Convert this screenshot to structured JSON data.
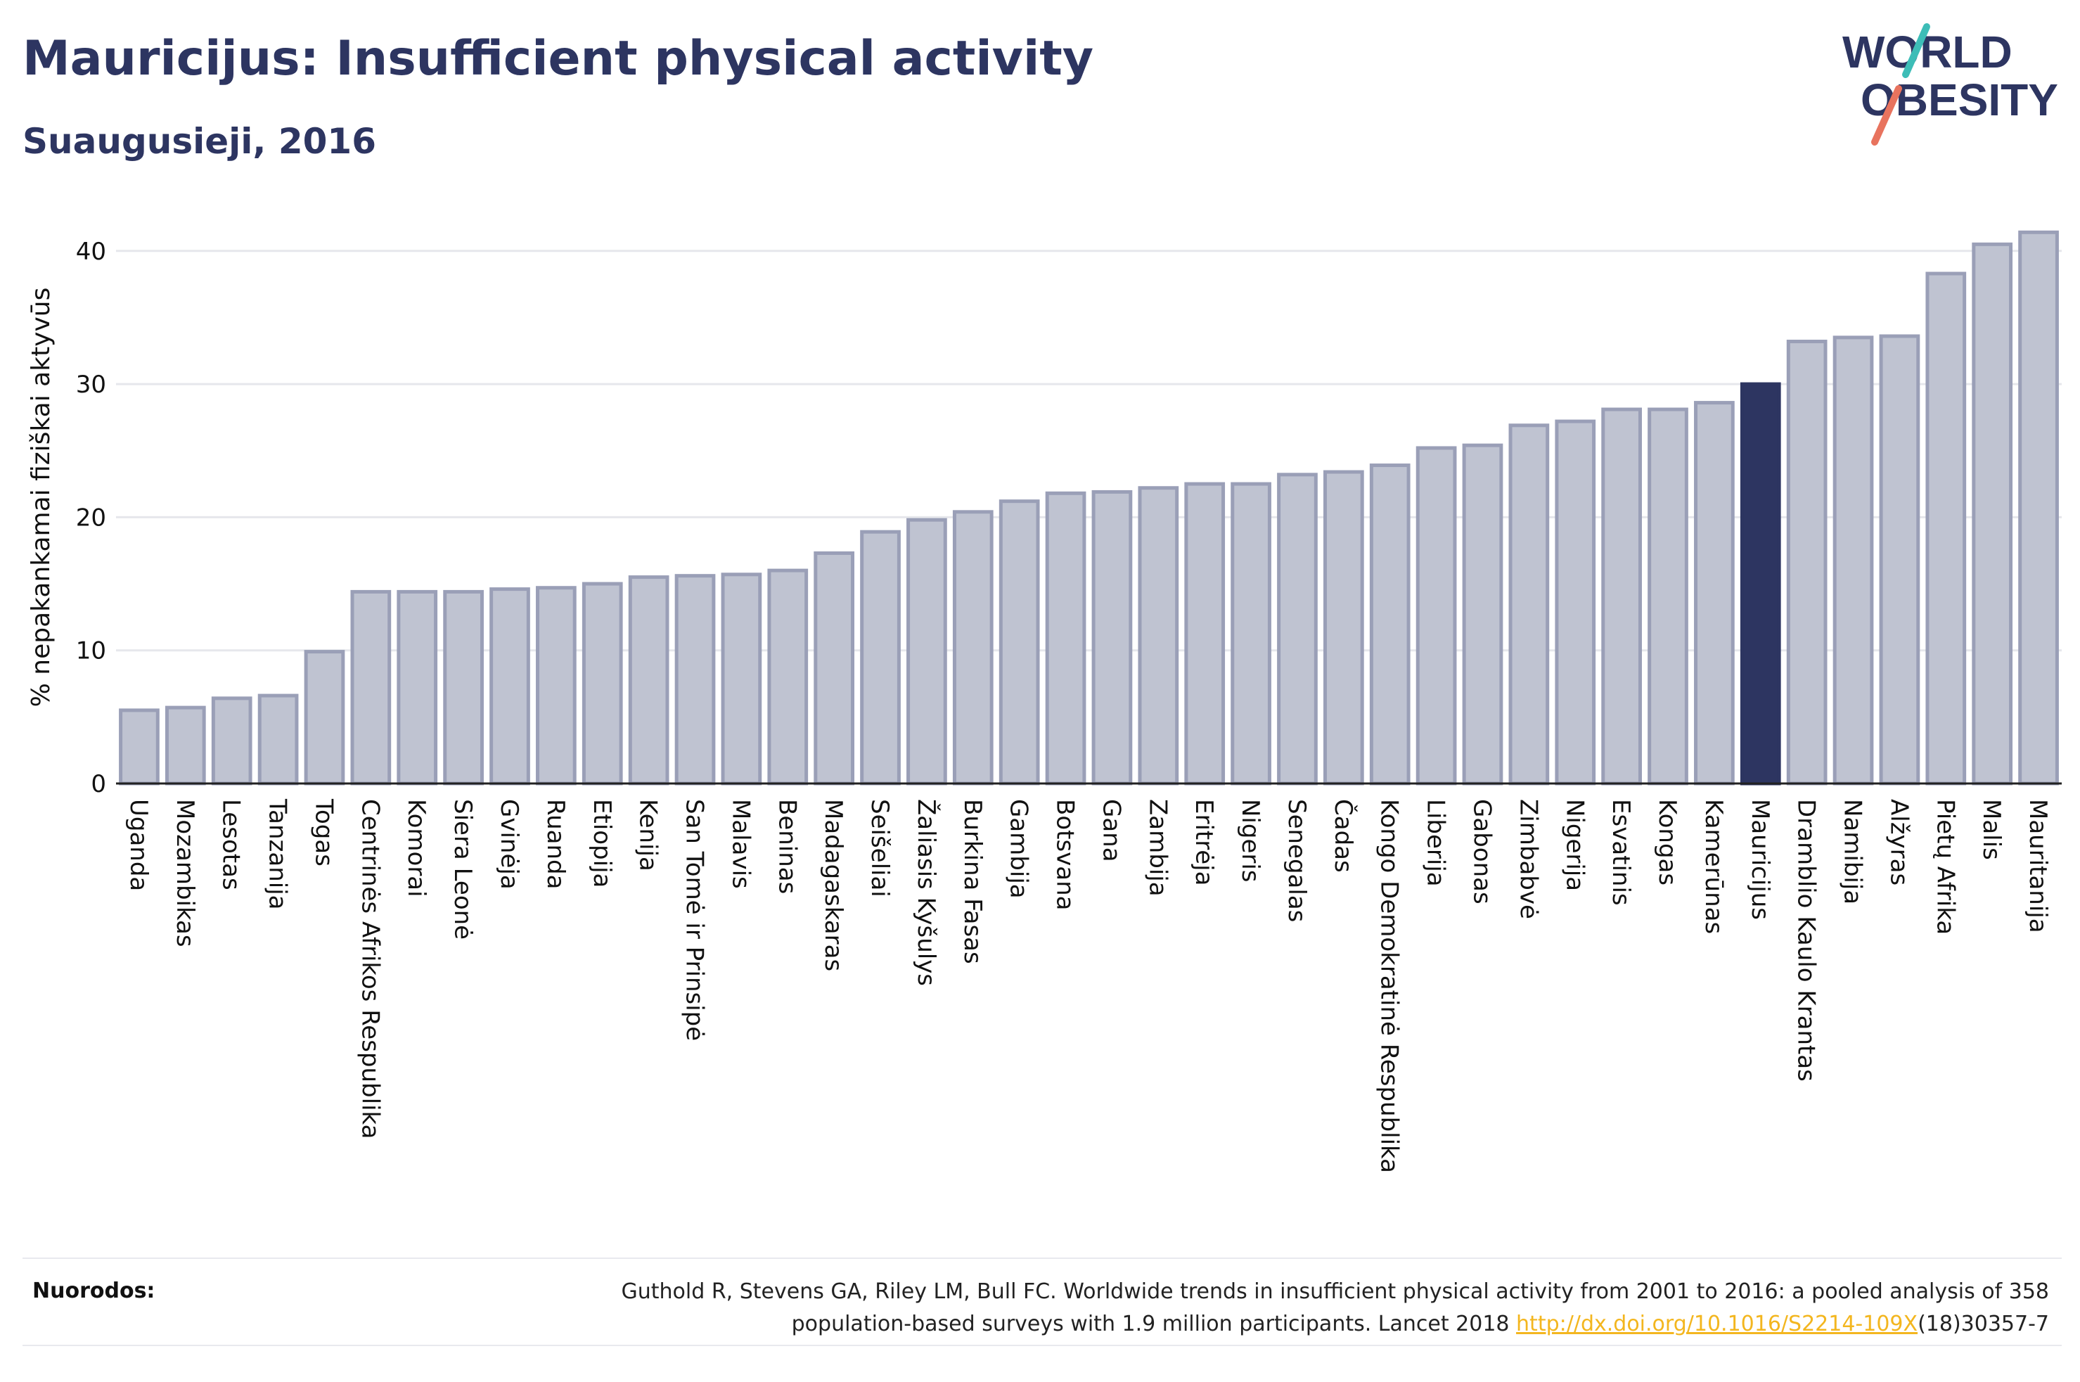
{
  "header": {
    "title": "Mauricijus: Insufficient physical activity",
    "subtitle": "Suaugusieji, 2016"
  },
  "logo": {
    "line1": "WORLD",
    "line2": "OBESITY"
  },
  "colors": {
    "bar": "#bfc3d1",
    "bar_stroke": "#9a9fb7",
    "highlight": "#2d3561",
    "grid": "#e6e7ec",
    "axis_text": "#111111"
  },
  "chart_data": {
    "type": "bar",
    "ylabel": "% nepakankamai fiziškai aktyvūs",
    "ylim": [
      0,
      43
    ],
    "yticks": [
      0,
      10,
      20,
      30,
      40
    ],
    "grid": true,
    "highlight": "Mauricijus",
    "categories": [
      "Uganda",
      "Mozambikas",
      "Lesotas",
      "Tanzanija",
      "Togas",
      "Centrinės Afrikos Respublika",
      "Komorai",
      "Siera Leonė",
      "Gvinėja",
      "Ruanda",
      "Etiopija",
      "Kenija",
      "San Tomė ir Prinsipė",
      "Malavis",
      "Beninas",
      "Madagaskaras",
      "Seišeliai",
      "Žaliasis Kyšulys",
      "Burkina Fasas",
      "Gambija",
      "Botsvana",
      "Gana",
      "Zambija",
      "Eritrėja",
      "Nigeris",
      "Senegalas",
      "Čadas",
      "Kongo Demokratinė Respublika",
      "Liberija",
      "Gabonas",
      "Zimbabvė",
      "Nigerija",
      "Esvatinis",
      "Kongas",
      "Kamerūnas",
      "Mauricijus",
      "Dramblio Kaulo Krantas",
      "Namibija",
      "Alžyras",
      "Pietų Afrika",
      "Malis",
      "Mauritanija"
    ],
    "values": [
      5.5,
      5.7,
      6.4,
      6.6,
      9.9,
      14.4,
      14.4,
      14.4,
      14.6,
      14.7,
      15.0,
      15.5,
      15.6,
      15.7,
      16.0,
      17.3,
      18.9,
      19.8,
      20.4,
      21.2,
      21.8,
      21.9,
      22.2,
      22.5,
      22.5,
      23.2,
      23.4,
      23.9,
      25.2,
      25.4,
      26.9,
      27.2,
      28.1,
      28.1,
      28.6,
      30.0,
      33.2,
      33.5,
      33.6,
      38.3,
      40.5,
      41.4
    ]
  },
  "footer": {
    "ref_label": "Nuorodos:",
    "ref_text": "Guthold R, Stevens GA, Riley LM, Bull FC. Worldwide trends in insufficient physical activity from 2001 to 2016: a pooled analysis of 358 population-based surveys with 1.9 million participants. Lancet 2018 ",
    "ref_link": "http://dx.doi.org/10.1016/S2214-109X",
    "ref_tail": "(18)30357-7"
  }
}
